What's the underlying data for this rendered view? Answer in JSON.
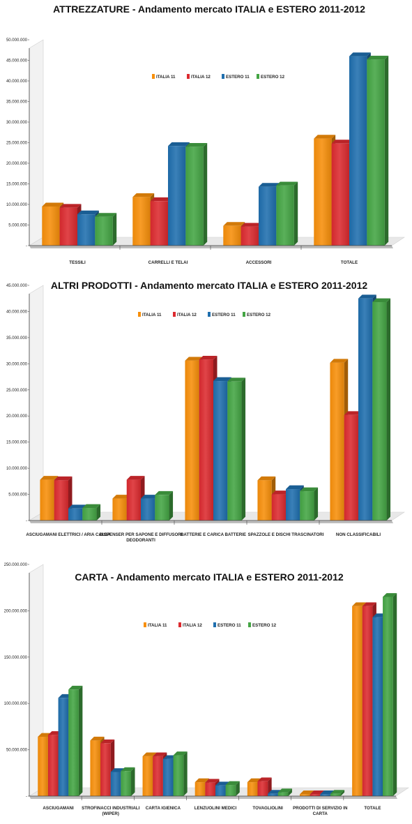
{
  "colors": {
    "ITALIA 11": "#f78f0a",
    "ITALIA 12": "#dc2a2f",
    "ESTERO 11": "#1f6fae",
    "ESTERO 12": "#44a544"
  },
  "chart_data": [
    {
      "type": "bar",
      "title": "ATTREZZATURE - Andamento mercato ITALIA e ESTERO 2011-2012",
      "categories": [
        [
          "TESSILI"
        ],
        [
          "CARRELLI E TELAI"
        ],
        [
          "ACCESSORI"
        ],
        [
          "TOTALE"
        ]
      ],
      "series": [
        {
          "name": "ITALIA 11",
          "values": [
            9500000,
            11800000,
            4800000,
            26000000
          ]
        },
        {
          "name": "ITALIA 12",
          "values": [
            9200000,
            10800000,
            4600000,
            24800000
          ]
        },
        {
          "name": "ESTERO 11",
          "values": [
            7600000,
            24200000,
            14300000,
            46000000
          ]
        },
        {
          "name": "ESTERO 12",
          "values": [
            7000000,
            24000000,
            14600000,
            45200000
          ]
        }
      ],
      "yticks": [
        "-",
        "5.000.000",
        "10.000.000",
        "15.000.000",
        "20.000.000",
        "25.000.000",
        "30.000.000",
        "35.000.000",
        "40.000.000",
        "45.000.000",
        "50.000.000"
      ],
      "ylim": [
        0,
        50000000
      ],
      "legend_position": "top-center",
      "grid": false
    },
    {
      "type": "bar",
      "title": "ALTRI PRODOTTI - Andamento mercato ITALIA e ESTERO 2011-2012",
      "categories": [
        [
          "ASCIUGAMANI ELETTRICI / ARIA CALDA"
        ],
        [
          "DISPENSER PER SAPONE E DIFFUSORI",
          "DEODORANTI"
        ],
        [
          "BATTERIE E CARICA BATTERIE"
        ],
        [
          "SPAZZOLE E DISCHI TRASCINATORI"
        ],
        [
          "NON CLASSIFICABILI"
        ]
      ],
      "series": [
        {
          "name": "ITALIA 11",
          "values": [
            7800000,
            4200000,
            30600000,
            7700000,
            30200000
          ]
        },
        {
          "name": "ITALIA 12",
          "values": [
            7700000,
            7800000,
            30800000,
            5000000,
            20200000
          ]
        },
        {
          "name": "ESTERO 11",
          "values": [
            2300000,
            4200000,
            26700000,
            6000000,
            42500000
          ]
        },
        {
          "name": "ESTERO 12",
          "values": [
            2400000,
            4900000,
            26600000,
            5600000,
            41800000
          ]
        }
      ],
      "yticks": [
        "-",
        "5.000.000",
        "10.000.000",
        "15.000.000",
        "20.000.000",
        "25.000.000",
        "30.000.000",
        "35.000.000",
        "40.000.000",
        "45.000.000"
      ],
      "ylim": [
        0,
        45000000
      ],
      "legend_position": "top-center",
      "grid": false
    },
    {
      "type": "bar",
      "title": "CARTA - Andamento mercato ITALIA e ESTERO 2011-2012",
      "categories": [
        [
          "ASCIUGAMANI"
        ],
        [
          "STROFINACCI INDUSTRIALI",
          "(WIPER)"
        ],
        [
          "CARTA IGIENICA"
        ],
        [
          "LENZUOLINI MEDICI"
        ],
        [
          "TOVAGLIOLINI"
        ],
        [
          "PRODOTTI DI SERVIZIO IN",
          "CARTA"
        ],
        [
          "TOTALE"
        ]
      ],
      "series": [
        {
          "name": "ITALIA 11",
          "values": [
            64000000,
            60000000,
            43000000,
            15000000,
            15000000,
            2000000,
            205000000
          ]
        },
        {
          "name": "ITALIA 12",
          "values": [
            66000000,
            57000000,
            43000000,
            14500000,
            16000000,
            2000000,
            205000000
          ]
        },
        {
          "name": "ESTERO 11",
          "values": [
            106000000,
            26000000,
            40000000,
            11500000,
            2500000,
            2000000,
            193000000
          ]
        },
        {
          "name": "ESTERO 12",
          "values": [
            115000000,
            27000000,
            44000000,
            12000000,
            4000000,
            2500000,
            215000000
          ]
        }
      ],
      "yticks": [
        "-",
        "50.000.000",
        "100.000.000",
        "150.000.000",
        "200.000.000",
        "250.000.000"
      ],
      "ylim": [
        0,
        250000000
      ],
      "legend_position": "top-center",
      "grid": false
    }
  ]
}
